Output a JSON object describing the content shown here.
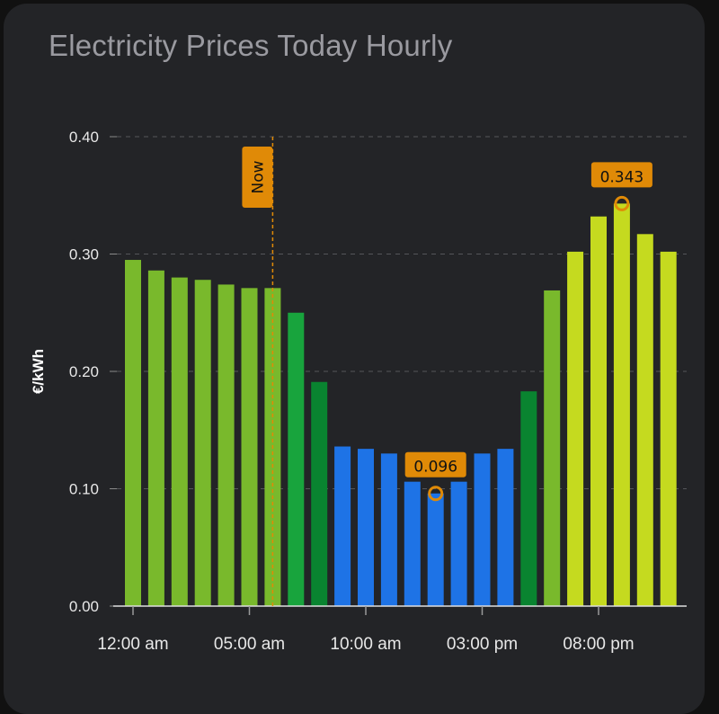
{
  "card": {
    "title": "Electricity Prices Today Hourly"
  },
  "chart_data": {
    "type": "bar",
    "title": "Electricity Prices Today Hourly",
    "ylabel": "€/kWh",
    "xlabel": "",
    "ylim": [
      0,
      0.4
    ],
    "yticks": [
      "0.00",
      "0.10",
      "0.20",
      "0.30",
      "0.40"
    ],
    "xticks": [
      {
        "hour": 0,
        "label": "12:00 am"
      },
      {
        "hour": 5,
        "label": "05:00 am"
      },
      {
        "hour": 10,
        "label": "10:00 am"
      },
      {
        "hour": 15,
        "label": "03:00 pm"
      },
      {
        "hour": 20,
        "label": "08:00 pm"
      }
    ],
    "grid": "horizontal dashed",
    "hours": [
      0,
      1,
      2,
      3,
      4,
      5,
      6,
      7,
      8,
      9,
      10,
      11,
      12,
      13,
      14,
      15,
      16,
      17,
      18,
      19,
      20,
      21,
      22,
      23
    ],
    "values": [
      0.295,
      0.286,
      0.28,
      0.278,
      0.274,
      0.271,
      0.271,
      0.25,
      0.191,
      0.136,
      0.134,
      0.13,
      0.106,
      0.096,
      0.106,
      0.13,
      0.134,
      0.183,
      0.269,
      0.302,
      0.332,
      0.343,
      0.317,
      0.302
    ],
    "colors": [
      "#79b92c",
      "#79b92c",
      "#79b92c",
      "#79b92c",
      "#79b92c",
      "#79b92c",
      "#79b92c",
      "#18a43d",
      "#098430",
      "#1e73e6",
      "#1e73e6",
      "#1e73e6",
      "#1e73e6",
      "#1e73e6",
      "#1e73e6",
      "#1e73e6",
      "#1e73e6",
      "#098430",
      "#79b92c",
      "#c5da1f",
      "#c5da1f",
      "#c5da1f",
      "#c5da1f",
      "#c5da1f"
    ],
    "annotations": {
      "now": {
        "hour": 6,
        "label": "Now",
        "color": "#e08a07"
      },
      "min": {
        "hour": 13,
        "value": 0.096,
        "label": "0.096",
        "color": "#e08a07"
      },
      "max": {
        "hour": 21,
        "value": 0.343,
        "label": "0.343",
        "color": "#e08a07"
      }
    }
  }
}
